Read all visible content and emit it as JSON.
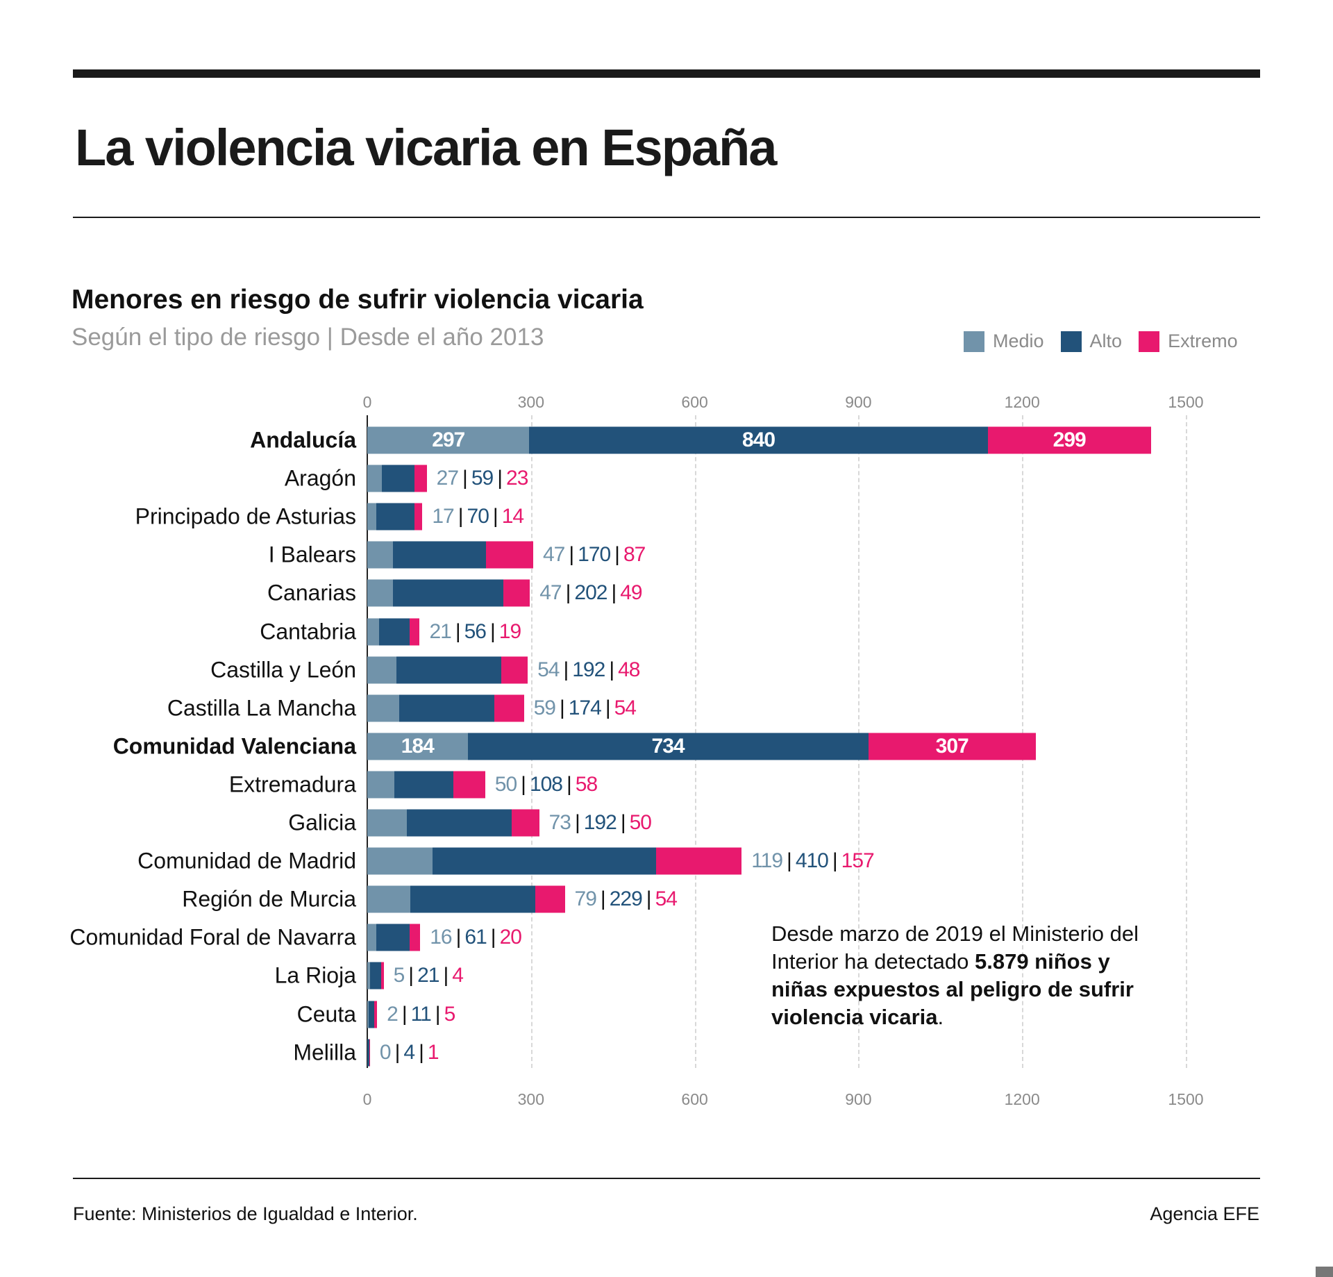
{
  "header": {
    "title": "La violencia vicaria en España"
  },
  "chart_data": {
    "type": "bar",
    "orientation": "horizontal",
    "stacked": true,
    "title": "Menores en riesgo de sufrir violencia vicaria",
    "subtitle": "Según el tipo de riesgo |  Desde el año 2013",
    "xlim": [
      0,
      1500
    ],
    "xticks": [
      "0",
      "300",
      "600",
      "900",
      "1200",
      "1500"
    ],
    "grid": true,
    "legend_position": "top-right",
    "categories": [
      "Andalucía",
      "Aragón",
      "Principado de Asturias",
      "I Balears",
      "Canarias",
      "Cantabria",
      "Castilla y León",
      "Castilla La Mancha",
      "Comunidad Valenciana",
      "Extremadura",
      "Galicia",
      "Comunidad de Madrid",
      "Región de Murcia",
      "Comunidad Foral de Navarra",
      "La Rioja",
      "Ceuta",
      "Melilla"
    ],
    "highlighted": [
      "Andalucía",
      "Comunidad Valenciana"
    ],
    "series": [
      {
        "name": "Medio",
        "color": "#7193aa",
        "values": [
          297,
          27,
          17,
          47,
          47,
          21,
          54,
          59,
          184,
          50,
          73,
          119,
          79,
          16,
          5,
          2,
          0
        ]
      },
      {
        "name": "Alto",
        "color": "#22527a",
        "values": [
          840,
          59,
          70,
          170,
          202,
          56,
          192,
          174,
          734,
          108,
          192,
          410,
          229,
          61,
          21,
          11,
          4
        ]
      },
      {
        "name": "Extremo",
        "color": "#e8196e",
        "values": [
          299,
          23,
          14,
          87,
          49,
          19,
          48,
          54,
          307,
          58,
          50,
          157,
          54,
          20,
          4,
          5,
          1
        ]
      }
    ]
  },
  "annotation": {
    "text_before": "Desde marzo de 2019 el Ministerio del Interior ha detectado ",
    "text_bold": "5.879 niños y niñas expuestos al peligro de sufrir violencia vicaria",
    "text_after": "."
  },
  "footer": {
    "source": "Fuente: Ministerios de Igualdad e Interior.",
    "agency": "Agencia EFE"
  }
}
